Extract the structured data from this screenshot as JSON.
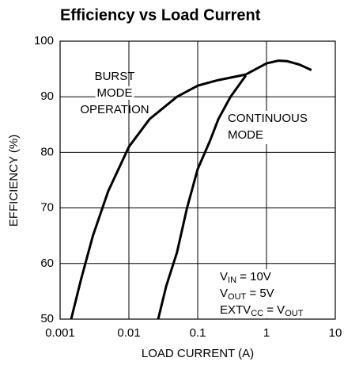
{
  "chart_data": {
    "type": "line",
    "title": "Efficiency vs Load Current",
    "xlabel": "LOAD CURRENT (A)",
    "ylabel": "EFFICIENCY (%)",
    "xscale": "log",
    "xlim": [
      0.001,
      10
    ],
    "xticks": [
      0.001,
      0.01,
      0.1,
      1,
      10
    ],
    "ylim": [
      50,
      100
    ],
    "yticks": [
      50,
      60,
      70,
      80,
      90,
      100
    ],
    "grid": true,
    "series": [
      {
        "name": "BURST MODE OPERATION",
        "color": "#000000",
        "x": [
          0.00145,
          0.002,
          0.003,
          0.005,
          0.01,
          0.02,
          0.05,
          0.1,
          0.2,
          0.5,
          1,
          1.5,
          2,
          3,
          4.5
        ],
        "values": [
          50,
          57,
          65,
          73,
          81,
          86,
          90,
          92,
          93,
          94,
          96,
          96.5,
          96.4,
          95.8,
          94.8
        ]
      },
      {
        "name": "CONTINUOUS MODE",
        "color": "#000000",
        "x": [
          0.0266,
          0.035,
          0.05,
          0.07,
          0.1,
          0.15,
          0.2,
          0.3,
          0.5
        ],
        "values": [
          50,
          56,
          62,
          70,
          77,
          82,
          86,
          90,
          93.8
        ]
      }
    ],
    "series_labels": [
      [
        "BURST",
        "MODE",
        "OPERATION"
      ],
      [
        "CONTINUOUS",
        "MODE"
      ]
    ],
    "conditions": [
      [
        "V",
        "IN",
        " = 10V"
      ],
      [
        "V",
        "OUT",
        " = 5V"
      ],
      [
        "EXTV",
        "CC",
        " = V",
        "OUT"
      ]
    ]
  }
}
